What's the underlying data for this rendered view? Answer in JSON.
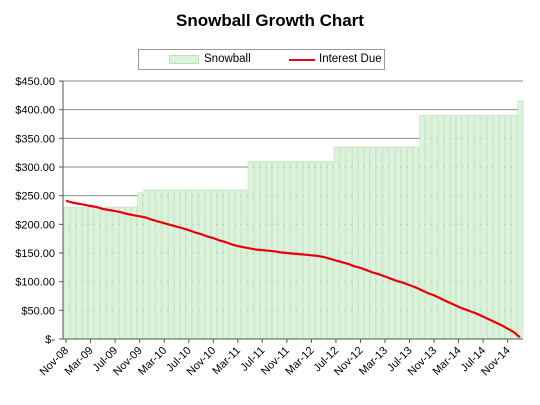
{
  "chart_data": {
    "type": "bar+line",
    "title": "Snowball Growth Chart",
    "legend": {
      "position": "top",
      "entries": [
        "Snowball",
        "Interest Due"
      ]
    },
    "ylim": [
      0,
      450
    ],
    "yticks": [
      "$-",
      "$50.00",
      "$100.00",
      "$150.00",
      "$200.00",
      "$250.00",
      "$300.00",
      "$350.00",
      "$400.00",
      "$450.00"
    ],
    "grid": true,
    "x_months": [
      "Nov-08",
      "Dec-08",
      "Jan-09",
      "Feb-09",
      "Mar-09",
      "Apr-09",
      "May-09",
      "Jun-09",
      "Jul-09",
      "Aug-09",
      "Sep-09",
      "Oct-09",
      "Nov-09",
      "Dec-09",
      "Jan-10",
      "Feb-10",
      "Mar-10",
      "Apr-10",
      "May-10",
      "Jun-10",
      "Jul-10",
      "Aug-10",
      "Sep-10",
      "Oct-10",
      "Nov-10",
      "Dec-10",
      "Jan-11",
      "Feb-11",
      "Mar-11",
      "Apr-11",
      "May-11",
      "Jun-11",
      "Jul-11",
      "Aug-11",
      "Sep-11",
      "Oct-11",
      "Nov-11",
      "Dec-11",
      "Jan-12",
      "Feb-12",
      "Mar-12",
      "Apr-12",
      "May-12",
      "Jun-12",
      "Jul-12",
      "Aug-12",
      "Sep-12",
      "Oct-12",
      "Nov-12",
      "Dec-12",
      "Jan-13",
      "Feb-13",
      "Mar-13",
      "Apr-13",
      "May-13",
      "Jun-13",
      "Jul-13",
      "Aug-13",
      "Sep-13",
      "Oct-13",
      "Nov-13",
      "Dec-13",
      "Jan-14",
      "Feb-14",
      "Mar-14",
      "Apr-14",
      "May-14",
      "Jun-14",
      "Jul-14",
      "Aug-14",
      "Sep-14",
      "Oct-14",
      "Nov-14",
      "Dec-14",
      "Jan-15"
    ],
    "xtick_labels": [
      "Nov-08",
      "Mar-09",
      "Jul-09",
      "Nov-09",
      "Mar-10",
      "Jul-10",
      "Nov-10",
      "Mar-11",
      "Jul-11",
      "Nov-11",
      "Mar-12",
      "Jul-12",
      "Nov-12",
      "Mar-13",
      "Jul-13",
      "Nov-13",
      "Mar-14",
      "Jul-14",
      "Nov-14"
    ],
    "series": [
      {
        "name": "Snowball",
        "kind": "bar",
        "color": "#ddf2dc",
        "edge": "#b9e0b8",
        "values": [
          230,
          230,
          230,
          230,
          230,
          230,
          230,
          230,
          230,
          230,
          230,
          230,
          255,
          260,
          260,
          260,
          260,
          260,
          260,
          260,
          260,
          260,
          260,
          260,
          260,
          260,
          260,
          260,
          260,
          260,
          310,
          310,
          310,
          310,
          310,
          310,
          310,
          310,
          310,
          310,
          310,
          310,
          310,
          310,
          335,
          335,
          335,
          335,
          335,
          335,
          335,
          335,
          335,
          335,
          335,
          335,
          335,
          335,
          390,
          390,
          390,
          390,
          390,
          390,
          390,
          390,
          390,
          390,
          390,
          390,
          390,
          390,
          390,
          390,
          415
        ]
      },
      {
        "name": "Interest Due",
        "kind": "line",
        "color": "#e8000a",
        "values": [
          241,
          238,
          236,
          234,
          232,
          230,
          227,
          225,
          223,
          221,
          218,
          216,
          214,
          212,
          208,
          205,
          202,
          199,
          196,
          193,
          190,
          186,
          183,
          179,
          176,
          172,
          169,
          165,
          162,
          160,
          158,
          156,
          155,
          154,
          153,
          151,
          150,
          149,
          148,
          147,
          146,
          145,
          143,
          140,
          137,
          134,
          131,
          127,
          124,
          120,
          116,
          113,
          109,
          105,
          101,
          98,
          94,
          90,
          85,
          80,
          76,
          71,
          66,
          61,
          56,
          52,
          48,
          44,
          39,
          34,
          29,
          24,
          18,
          12,
          3
        ]
      }
    ]
  }
}
